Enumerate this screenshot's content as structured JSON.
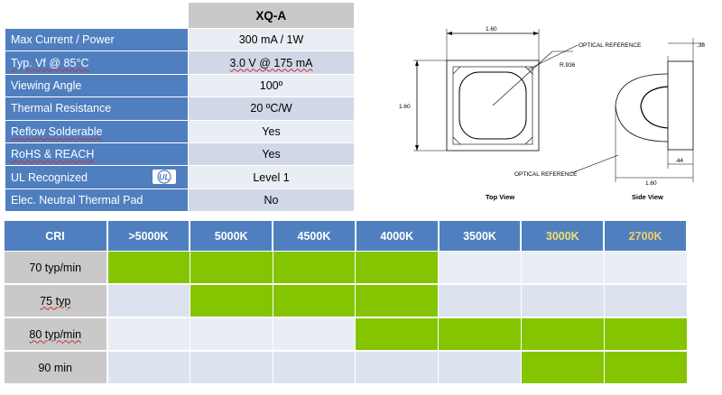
{
  "spec_table": {
    "header": "XQ-A",
    "rows": [
      {
        "label": "Max Current / Power",
        "value": "300 mA / 1W"
      },
      {
        "label": "Typ. Vf  @ 85°C",
        "value": "3.0 V @ 175 mA"
      },
      {
        "label": "Viewing Angle",
        "value": "100º"
      },
      {
        "label": "Thermal Resistance",
        "value": "20 ºC/W"
      },
      {
        "label": "Reflow Solderable",
        "value": "Yes"
      },
      {
        "label": "RoHS & REACH",
        "value": "Yes"
      },
      {
        "label": "UL Recognized",
        "value": "Level 1"
      },
      {
        "label": "Elec. Neutral Thermal Pad",
        "value": "No"
      }
    ],
    "ul_logo_text": "ᵁL"
  },
  "drawing": {
    "top_view_label": "Top View",
    "side_view_label": "Side View",
    "dim_width": "1.60",
    "dim_height": "1.60",
    "dim_radius": "R.936",
    "dim_side_thickness": ".38",
    "dim_side_depth": ".44",
    "dim_side_width": "1.60",
    "optical_reference_1": "OPTICAL REFERENCE",
    "optical_reference_2": "OPTICAL REFERENCE"
  },
  "cri_table": {
    "corner": "CRI",
    "columns": [
      ">5000K",
      "5000K",
      "4500K",
      "4000K",
      "3500K",
      "3000K",
      "2700K"
    ],
    "rows": [
      {
        "label": "70 typ/min",
        "available": [
          true,
          true,
          true,
          true,
          false,
          false,
          false
        ]
      },
      {
        "label": "75 typ",
        "available": [
          false,
          true,
          true,
          true,
          false,
          false,
          false
        ]
      },
      {
        "label": "80 typ/min",
        "available": [
          false,
          false,
          false,
          true,
          true,
          true,
          true
        ]
      },
      {
        "label": "90 min",
        "available": [
          false,
          false,
          false,
          false,
          false,
          true,
          true
        ]
      }
    ],
    "available_color": "#84c400",
    "header_color": "#4f7fbf"
  }
}
